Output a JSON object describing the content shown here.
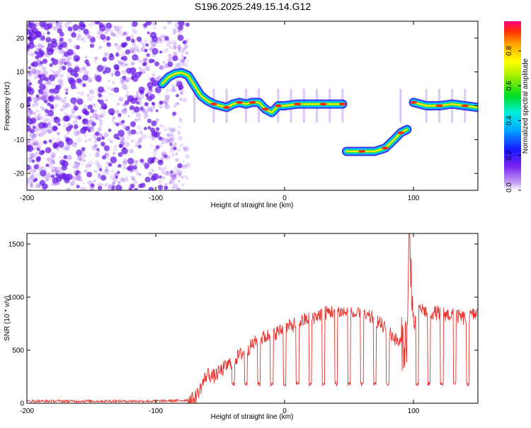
{
  "title": "S196.2025.249.15.14.G12",
  "colors": {
    "background": "#ffffff",
    "frame": "#000000",
    "snr_line": "#e8302a",
    "scatter_base": "#8a3cf0"
  },
  "chart_data": [
    {
      "type": "heatmap",
      "xlabel": "Height of straight line (km)",
      "ylabel": "Frequency (Hz)",
      "xlim": [
        -200,
        150
      ],
      "ylim": [
        -25,
        25
      ],
      "x_ticks": [
        -200,
        -100,
        0,
        100
      ],
      "x_tick_labels": [
        "-200",
        "-100",
        "0",
        "100"
      ],
      "y_ticks": [
        -20,
        -10,
        0,
        10,
        20
      ],
      "y_tick_labels": [
        "-20",
        "-10",
        "0",
        "10",
        "20"
      ],
      "colorbar": {
        "label": "Normalized spectral amplitude",
        "range": [
          0,
          0.97
        ],
        "ticks": [
          0.0,
          0.2,
          0.4,
          0.6,
          0.8
        ],
        "tick_labels": [
          "0.0",
          "0.2",
          "0.4",
          "0.6",
          "0.8"
        ],
        "colormap": "rainbow"
      },
      "signal_track": [
        {
          "x": -95,
          "y": 6.5
        },
        {
          "x": -90,
          "y": 8.5
        },
        {
          "x": -85,
          "y": 9.5
        },
        {
          "x": -80,
          "y": 9.8
        },
        {
          "x": -75,
          "y": 9.0
        },
        {
          "x": -70,
          "y": 6.0
        },
        {
          "x": -65,
          "y": 3.0
        },
        {
          "x": -60,
          "y": 1.5
        },
        {
          "x": -55,
          "y": 0.5
        },
        {
          "x": -50,
          "y": 0.0
        },
        {
          "x": -45,
          "y": -0.5
        },
        {
          "x": -40,
          "y": 0.5
        },
        {
          "x": -35,
          "y": 1.0
        },
        {
          "x": -30,
          "y": 0.5
        },
        {
          "x": -25,
          "y": 1.0
        },
        {
          "x": -20,
          "y": 1.0
        },
        {
          "x": -15,
          "y": -1.0
        },
        {
          "x": -10,
          "y": -2.0
        },
        {
          "x": -5,
          "y": 0.0
        },
        {
          "x": 0,
          "y": 0.0
        },
        {
          "x": 10,
          "y": 0.5
        },
        {
          "x": 20,
          "y": 0.5
        },
        {
          "x": 30,
          "y": 0.5
        },
        {
          "x": 40,
          "y": 0.5
        },
        {
          "x": 45,
          "y": 0.5
        },
        {
          "x": 48,
          "y": -13.5
        },
        {
          "x": 60,
          "y": -13.5
        },
        {
          "x": 70,
          "y": -13.5
        },
        {
          "x": 78,
          "y": -12.5
        },
        {
          "x": 85,
          "y": -10.0
        },
        {
          "x": 90,
          "y": -8.0
        },
        {
          "x": 95,
          "y": -7.0
        },
        {
          "x": 100,
          "y": 1.0
        },
        {
          "x": 110,
          "y": 0.0
        },
        {
          "x": 120,
          "y": 0.0
        },
        {
          "x": 130,
          "y": 0.5
        },
        {
          "x": 140,
          "y": 0.0
        },
        {
          "x": 150,
          "y": -0.5
        }
      ]
    },
    {
      "type": "line",
      "xlabel": "Height of straight line (km)",
      "ylabel": "SNR (10 * v/v)",
      "xlim": [
        -200,
        150
      ],
      "ylim": [
        0,
        1600
      ],
      "x_ticks": [
        -200,
        -100,
        0,
        100
      ],
      "x_tick_labels": [
        "-200",
        "-100",
        "0",
        "100"
      ],
      "y_ticks": [
        0,
        500,
        1000,
        1500
      ],
      "y_tick_labels": [
        "0",
        "500",
        "1000",
        "1500"
      ],
      "series": [
        {
          "name": "SNR",
          "x": [
            -200,
            -150,
            -100,
            -80,
            -70,
            -65,
            -60,
            -55,
            -50,
            -40,
            -30,
            -20,
            -10,
            0,
            10,
            20,
            30,
            40,
            50,
            60,
            70,
            75,
            80,
            85,
            90,
            95,
            97,
            100,
            105,
            110,
            120,
            130,
            140,
            150
          ],
          "values": [
            20,
            20,
            20,
            25,
            40,
            150,
            280,
            250,
            300,
            400,
            500,
            600,
            650,
            700,
            760,
            800,
            850,
            870,
            850,
            820,
            800,
            740,
            680,
            620,
            550,
            600,
            1600,
            700,
            900,
            860,
            850,
            830,
            800,
            850
          ]
        }
      ],
      "dropouts": [
        -40,
        -30,
        -20,
        -10,
        0,
        10,
        20,
        30,
        40,
        50,
        60,
        70,
        80,
        103,
        112,
        122,
        132,
        142
      ]
    }
  ]
}
